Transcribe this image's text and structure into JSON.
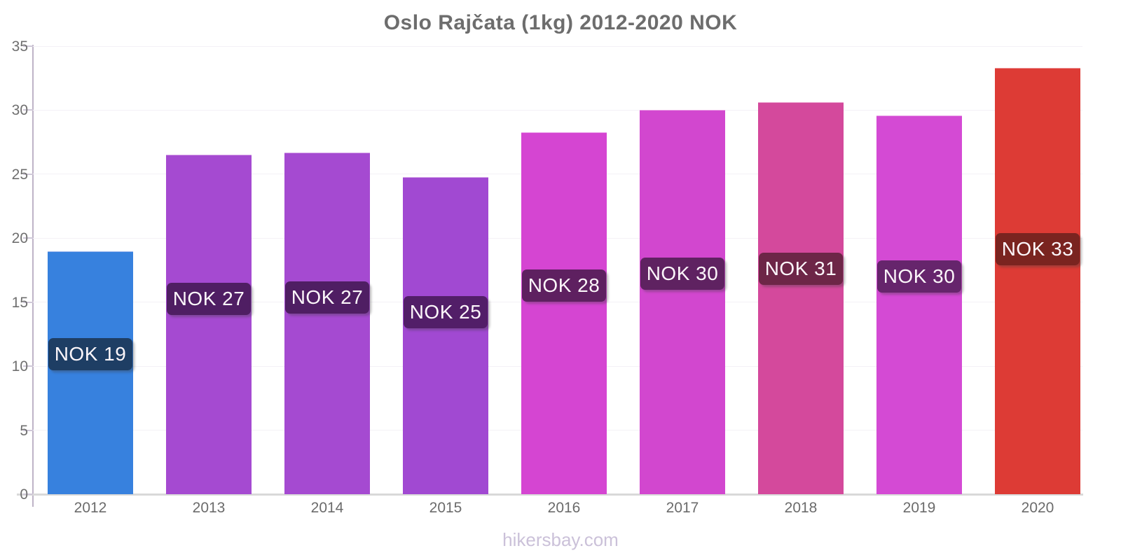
{
  "title": "Oslo Rajčata (1kg) 2012-2020 NOK",
  "watermark": "hikersbay.com",
  "chart_data": {
    "type": "bar",
    "title": "Oslo Rajčata (1kg) 2012-2020 NOK",
    "categories": [
      "2012",
      "2013",
      "2014",
      "2015",
      "2016",
      "2017",
      "2018",
      "2019",
      "2020"
    ],
    "values": [
      19,
      26.5,
      26.7,
      24.75,
      28.3,
      30,
      30.65,
      29.6,
      33.3
    ],
    "bar_labels": [
      "NOK 19",
      "NOK 27",
      "NOK 27",
      "NOK 25",
      "NOK 28",
      "NOK 30",
      "NOK 31",
      "NOK 30",
      "NOK 33"
    ],
    "bar_colors": [
      "#3781DE",
      "#A54AD1",
      "#A54AD1",
      "#A149D2",
      "#D545D2",
      "#D247CF",
      "#D4499C",
      "#D44AD4",
      "#DD3B35"
    ],
    "label_bg_colors": [
      "#1E3E64",
      "#4F1E63",
      "#4F1E63",
      "#521E68",
      "#5E2060",
      "#5F2261",
      "#6D2647",
      "#66256C",
      "#7A2420"
    ],
    "ylim": [
      0,
      35
    ],
    "yticks": [
      0,
      5,
      10,
      15,
      20,
      25,
      30,
      35
    ],
    "xlabel": "",
    "ylabel": "",
    "legend": "none",
    "grid": "horizontal-faint",
    "currency": "NOK"
  },
  "colors": {
    "title_text": "#6d6d6d",
    "tick_text": "#6f6f6f",
    "axis_line": "#beb3c7",
    "baseline": "#d9d9d9",
    "watermark_text": "#cbc1d9",
    "bar_value_text": "#fcf6fa"
  }
}
